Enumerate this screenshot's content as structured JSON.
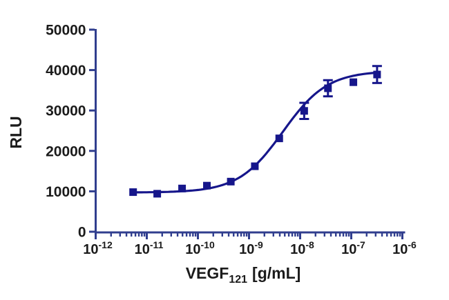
{
  "figure": {
    "background": "#ffffff"
  },
  "chart_data": {
    "type": "scatter",
    "subtype": "dose-response-curve",
    "title": "",
    "xlabel": {
      "main": "VEGF",
      "sub": "121",
      "rest": "[g/mL]"
    },
    "ylabel": "RLU",
    "x_scale": "log10",
    "x_tick_base": "10",
    "x_tick_exponents": [
      "-12",
      "-11",
      "-10",
      "-9",
      "-8",
      "-7",
      "-6"
    ],
    "x_range_exponents": [
      -12,
      -6
    ],
    "y_ticks": [
      0,
      10000,
      20000,
      30000,
      40000,
      50000
    ],
    "y_tick_labels": [
      "0",
      "10000",
      "20000",
      "30000",
      "40000",
      "50000"
    ],
    "ylim": [
      0,
      50000
    ],
    "grid": false,
    "legend": null,
    "marker": "filled-square",
    "points": {
      "x": [
        5.4e-12,
        1.6e-11,
        4.9e-11,
        1.5e-10,
        4.4e-10,
        1.3e-09,
        3.9e-09,
        1.2e-08,
        3.5e-08,
        1.1e-07,
        3.2e-07
      ],
      "y": [
        9800,
        9400,
        10700,
        11400,
        12400,
        16200,
        23100,
        29900,
        35500,
        37000,
        38900
      ],
      "yerr": [
        0,
        0,
        0,
        0,
        0,
        0,
        0,
        2000,
        2000,
        0,
        2100
      ]
    },
    "fit": {
      "model": "4PL",
      "bottom": 9700,
      "top": 39800,
      "ec50": 4.6e-09,
      "hill": 1.0
    },
    "colors": {
      "axis": "#303e8e",
      "data": "#16168b",
      "text": "#1b1b1b",
      "background": "#ffffff"
    }
  }
}
